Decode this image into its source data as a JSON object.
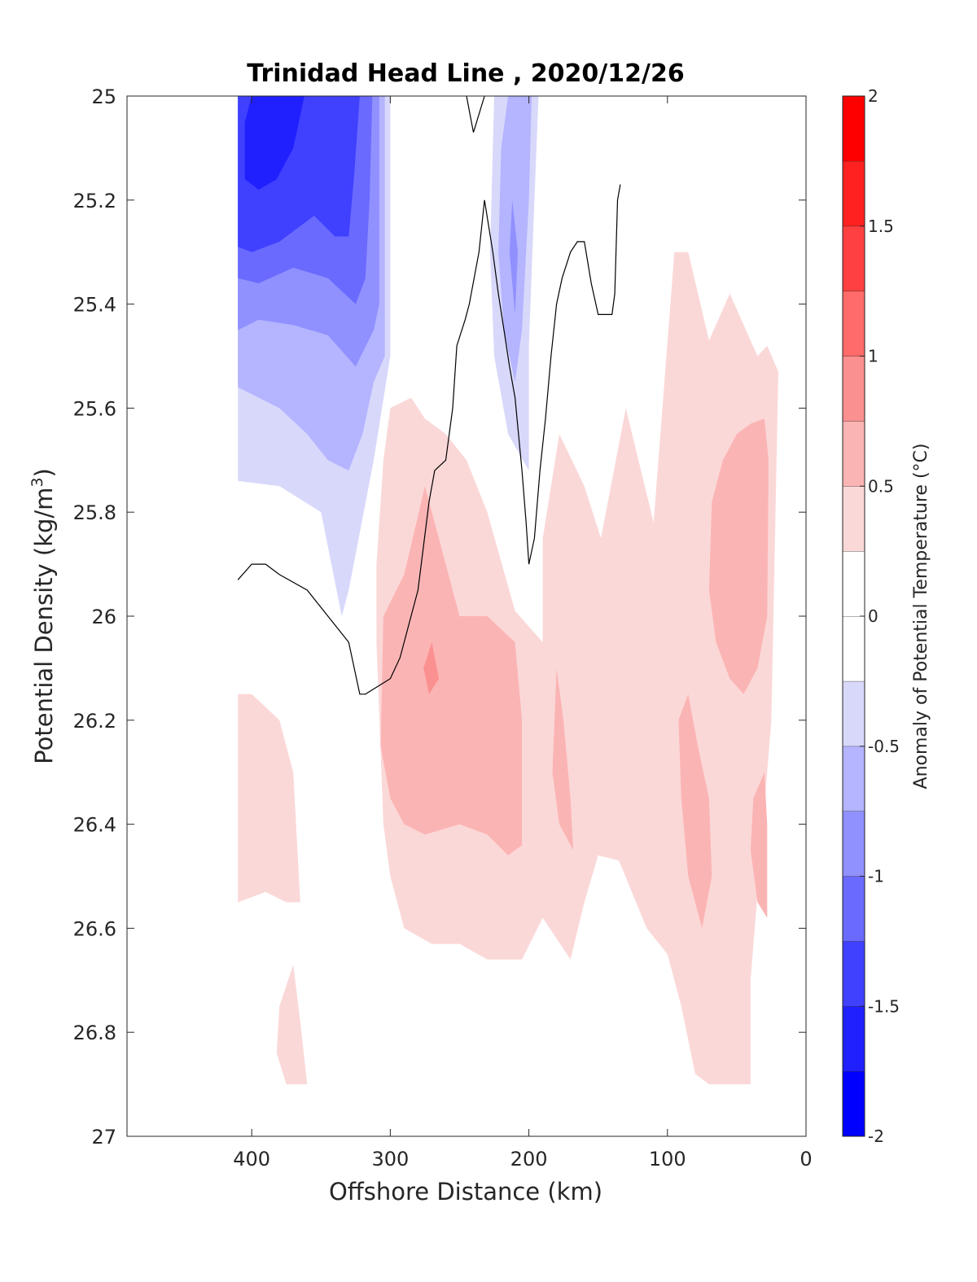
{
  "chart_data": {
    "type": "contour",
    "title": "Trinidad Head Line , 2020/12/26",
    "xlabel": "Offshore Distance (km)",
    "ylabel_main": "Potential Density (kg/m",
    "ylabel_sup": "3",
    "ylabel_close": ")",
    "colorbar_label": "Anomaly of Potential Temperature (°C)",
    "xlim": [
      490,
      0
    ],
    "ylim": [
      27,
      25
    ],
    "xticks": [
      400,
      300,
      200,
      100,
      0
    ],
    "xtick_labels": [
      "400",
      "300",
      "200",
      "100",
      "0"
    ],
    "yticks": [
      25,
      25.2,
      25.4,
      25.6,
      25.8,
      26,
      26.2,
      26.4,
      26.6,
      26.8,
      27
    ],
    "ytick_labels": [
      "25",
      "25.2",
      "25.4",
      "25.6",
      "25.8",
      "26",
      "26.2",
      "26.4",
      "26.6",
      "26.8",
      "27"
    ],
    "colorbar": {
      "clim": [
        -2,
        2
      ],
      "ticks": [
        -2,
        -1.5,
        -1,
        -0.5,
        0,
        0.5,
        1,
        1.5,
        2
      ],
      "tick_labels": [
        "-2",
        "-1.5",
        "-1",
        "-0.5",
        "0",
        "0.5",
        "1",
        "1.5",
        "2"
      ],
      "levels": [
        {
          "from": -2.0,
          "to": -1.75,
          "color": "#0000ff"
        },
        {
          "from": -1.75,
          "to": -1.5,
          "color": "#2020ff"
        },
        {
          "from": -1.5,
          "to": -1.25,
          "color": "#4040ff"
        },
        {
          "from": -1.25,
          "to": -1.0,
          "color": "#6a6aff"
        },
        {
          "from": -1.0,
          "to": -0.75,
          "color": "#9090ff"
        },
        {
          "from": -0.75,
          "to": -0.5,
          "color": "#b4b4ff"
        },
        {
          "from": -0.5,
          "to": -0.25,
          "color": "#d8d8fb"
        },
        {
          "from": -0.25,
          "to": 0.0,
          "color": "#ffffff"
        },
        {
          "from": 0.0,
          "to": 0.25,
          "color": "#ffffff"
        },
        {
          "from": 0.25,
          "to": 0.5,
          "color": "#fbd8d8"
        },
        {
          "from": 0.5,
          "to": 0.75,
          "color": "#fbb4b4"
        },
        {
          "from": 0.75,
          "to": 1.0,
          "color": "#fb9090"
        },
        {
          "from": 1.0,
          "to": 1.25,
          "color": "#ff6a6a"
        },
        {
          "from": 1.25,
          "to": 1.5,
          "color": "#ff4040"
        },
        {
          "from": 1.5,
          "to": 1.75,
          "color": "#ff2020"
        },
        {
          "from": 1.75,
          "to": 2.0,
          "color": "#ff0000"
        }
      ]
    },
    "regions": [
      {
        "level": -0.375,
        "color": "#d8d8fb",
        "points": [
          [
            410,
            25
          ],
          [
            300,
            25
          ],
          [
            300,
            25.5
          ],
          [
            312,
            25.7
          ],
          [
            330,
            25.95
          ],
          [
            335,
            26
          ],
          [
            350,
            25.8
          ],
          [
            380,
            25.75
          ],
          [
            410,
            25.74
          ]
        ]
      },
      {
        "level": -0.625,
        "color": "#b4b4ff",
        "points": [
          [
            410,
            25
          ],
          [
            304,
            25
          ],
          [
            304,
            25.5
          ],
          [
            312,
            25.55
          ],
          [
            320,
            25.65
          ],
          [
            330,
            25.72
          ],
          [
            345,
            25.7
          ],
          [
            360,
            25.65
          ],
          [
            380,
            25.6
          ],
          [
            410,
            25.56
          ]
        ]
      },
      {
        "level": -0.875,
        "color": "#9090ff",
        "points": [
          [
            410,
            25
          ],
          [
            308,
            25
          ],
          [
            308,
            25.4
          ],
          [
            312,
            25.45
          ],
          [
            325,
            25.52
          ],
          [
            345,
            25.46
          ],
          [
            370,
            25.44
          ],
          [
            395,
            25.43
          ],
          [
            410,
            25.45
          ]
        ]
      },
      {
        "level": -1.125,
        "color": "#6a6aff",
        "points": [
          [
            410,
            25
          ],
          [
            313,
            25
          ],
          [
            315,
            25.2
          ],
          [
            318,
            25.35
          ],
          [
            325,
            25.4
          ],
          [
            345,
            25.35
          ],
          [
            370,
            25.33
          ],
          [
            395,
            25.36
          ],
          [
            410,
            25.35
          ]
        ]
      },
      {
        "level": -1.375,
        "color": "#4040ff",
        "points": [
          [
            410,
            25
          ],
          [
            322,
            25
          ],
          [
            326,
            25.15
          ],
          [
            330,
            25.27
          ],
          [
            340,
            25.27
          ],
          [
            355,
            25.23
          ],
          [
            380,
            25.28
          ],
          [
            400,
            25.3
          ],
          [
            410,
            25.29
          ]
        ]
      },
      {
        "level": -1.625,
        "color": "#2020ff",
        "points": [
          [
            400,
            25
          ],
          [
            362,
            25
          ],
          [
            370,
            25.1
          ],
          [
            382,
            25.16
          ],
          [
            395,
            25.18
          ],
          [
            405,
            25.16
          ],
          [
            405,
            25.05
          ]
        ]
      },
      {
        "level": -0.375,
        "color": "#d8d8fb",
        "points": [
          [
            225,
            25
          ],
          [
            193,
            25
          ],
          [
            196,
            25.2
          ],
          [
            200,
            25.48
          ],
          [
            200,
            25.72
          ],
          [
            215,
            25.65
          ],
          [
            225,
            25.5
          ],
          [
            228,
            25.3
          ]
        ]
      },
      {
        "level": -0.625,
        "color": "#b4b4ff",
        "points": [
          [
            215,
            25
          ],
          [
            198,
            25
          ],
          [
            200,
            25.2
          ],
          [
            205,
            25.45
          ],
          [
            210,
            25.55
          ],
          [
            218,
            25.45
          ],
          [
            222,
            25.3
          ],
          [
            220,
            25.1
          ]
        ]
      },
      {
        "level": -0.875,
        "color": "#9090ff",
        "points": [
          [
            212,
            25.2
          ],
          [
            208,
            25.3
          ],
          [
            210,
            25.42
          ],
          [
            214,
            25.3
          ]
        ]
      },
      {
        "level": 0.375,
        "color": "#fbd8d8",
        "points": [
          [
            310,
            26.05
          ],
          [
            305,
            26.4
          ],
          [
            300,
            26.5
          ],
          [
            290,
            26.6
          ],
          [
            270,
            26.63
          ],
          [
            250,
            26.63
          ],
          [
            230,
            26.66
          ],
          [
            205,
            26.66
          ],
          [
            190,
            26.58
          ],
          [
            170,
            26.66
          ],
          [
            160,
            26.55
          ],
          [
            150,
            26.46
          ],
          [
            135,
            26.47
          ],
          [
            115,
            26.6
          ],
          [
            100,
            26.65
          ],
          [
            90,
            26.75
          ],
          [
            80,
            26.88
          ],
          [
            70,
            26.9
          ],
          [
            40,
            26.9
          ],
          [
            40,
            26.7
          ],
          [
            25,
            26.2
          ],
          [
            20,
            25.53
          ],
          [
            28,
            25.48
          ],
          [
            35,
            25.5
          ],
          [
            55,
            25.38
          ],
          [
            70,
            25.47
          ],
          [
            85,
            25.3
          ],
          [
            95,
            25.3
          ],
          [
            110,
            25.82
          ],
          [
            130,
            25.6
          ],
          [
            148,
            25.85
          ],
          [
            160,
            25.75
          ],
          [
            178,
            25.65
          ],
          [
            190,
            25.85
          ],
          [
            190,
            26.05
          ],
          [
            210,
            25.99
          ],
          [
            230,
            25.8
          ],
          [
            245,
            25.7
          ],
          [
            260,
            25.65
          ],
          [
            275,
            25.62
          ],
          [
            285,
            25.58
          ],
          [
            300,
            25.6
          ],
          [
            305,
            25.7
          ],
          [
            310,
            25.9
          ]
        ]
      },
      {
        "level": 0.375,
        "color": "#fbd8d8",
        "points": [
          [
            410,
            26.15
          ],
          [
            400,
            26.15
          ],
          [
            380,
            26.2
          ],
          [
            370,
            26.3
          ],
          [
            365,
            26.55
          ],
          [
            375,
            26.55
          ],
          [
            390,
            26.53
          ],
          [
            410,
            26.55
          ]
        ]
      },
      {
        "level": 0.375,
        "color": "#fbd8d8",
        "points": [
          [
            380,
            26.75
          ],
          [
            370,
            26.67
          ],
          [
            365,
            26.78
          ],
          [
            360,
            26.9
          ],
          [
            375,
            26.9
          ],
          [
            382,
            26.84
          ]
        ]
      },
      {
        "level": 0.625,
        "color": "#fbb4b4",
        "points": [
          [
            290,
            25.92
          ],
          [
            305,
            26.0
          ],
          [
            307,
            26.25
          ],
          [
            300,
            26.35
          ],
          [
            290,
            26.4
          ],
          [
            275,
            26.42
          ],
          [
            250,
            26.4
          ],
          [
            230,
            26.42
          ],
          [
            215,
            26.46
          ],
          [
            205,
            26.44
          ],
          [
            205,
            26.2
          ],
          [
            210,
            26.05
          ],
          [
            230,
            26.0
          ],
          [
            250,
            26.0
          ],
          [
            265,
            25.85
          ],
          [
            275,
            25.75
          ]
        ]
      },
      {
        "level": 0.875,
        "color": "#fb9090",
        "points": [
          [
            270,
            26.05
          ],
          [
            265,
            26.12
          ],
          [
            272,
            26.15
          ],
          [
            276,
            26.1
          ]
        ]
      },
      {
        "level": 0.625,
        "color": "#fbb4b4",
        "points": [
          [
            180,
            26.1
          ],
          [
            175,
            26.2
          ],
          [
            170,
            26.35
          ],
          [
            168,
            26.45
          ],
          [
            178,
            26.4
          ],
          [
            183,
            26.3
          ]
        ]
      },
      {
        "level": 0.625,
        "color": "#fbb4b4",
        "points": [
          [
            85,
            26.15
          ],
          [
            78,
            26.25
          ],
          [
            70,
            26.35
          ],
          [
            68,
            26.5
          ],
          [
            75,
            26.6
          ],
          [
            85,
            26.5
          ],
          [
            90,
            26.35
          ],
          [
            92,
            26.2
          ]
        ]
      },
      {
        "level": 0.625,
        "color": "#fbb4b4",
        "points": [
          [
            30,
            26.3
          ],
          [
            28,
            26.4
          ],
          [
            28,
            26.58
          ],
          [
            35,
            26.55
          ],
          [
            40,
            26.45
          ],
          [
            38,
            26.35
          ]
        ]
      },
      {
        "level": 0.625,
        "color": "#fbb4b4",
        "points": [
          [
            50,
            25.65
          ],
          [
            60,
            25.7
          ],
          [
            68,
            25.78
          ],
          [
            70,
            25.95
          ],
          [
            65,
            26.05
          ],
          [
            55,
            26.12
          ],
          [
            45,
            26.15
          ],
          [
            35,
            26.1
          ],
          [
            28,
            26.0
          ],
          [
            27,
            25.7
          ],
          [
            30,
            25.62
          ],
          [
            40,
            25.63
          ]
        ]
      }
    ],
    "zero_contours": [
      [
        [
          410,
          25.93
        ],
        [
          400,
          25.9
        ],
        [
          390,
          25.9
        ],
        [
          380,
          25.92
        ],
        [
          360,
          25.95
        ],
        [
          345,
          26.0
        ],
        [
          330,
          26.05
        ],
        [
          322,
          26.15
        ],
        [
          318,
          26.15
        ],
        [
          300,
          26.12
        ],
        [
          293,
          26.08
        ],
        [
          280,
          25.95
        ],
        [
          272,
          25.78
        ],
        [
          268,
          25.72
        ],
        [
          260,
          25.7
        ],
        [
          255,
          25.6
        ],
        [
          252,
          25.48
        ],
        [
          246,
          25.43
        ],
        [
          243,
          25.4
        ],
        [
          236,
          25.3
        ],
        [
          232,
          25.2
        ],
        [
          226,
          25.3
        ],
        [
          222,
          25.38
        ],
        [
          218,
          25.45
        ],
        [
          214,
          25.52
        ],
        [
          210,
          25.58
        ],
        [
          205,
          25.72
        ],
        [
          202,
          25.82
        ],
        [
          200,
          25.9
        ],
        [
          196,
          25.85
        ],
        [
          192,
          25.72
        ],
        [
          188,
          25.62
        ],
        [
          184,
          25.5
        ],
        [
          180,
          25.4
        ],
        [
          176,
          25.35
        ],
        [
          170,
          25.3
        ],
        [
          165,
          25.28
        ],
        [
          160,
          25.28
        ],
        [
          155,
          25.36
        ],
        [
          150,
          25.42
        ],
        [
          146,
          25.42
        ],
        [
          140,
          25.42
        ],
        [
          138,
          25.38
        ],
        [
          136,
          25.2
        ],
        [
          134,
          25.17
        ]
      ]
    ],
    "zero_contour_top": [
      [
        232,
        25
      ],
      [
        240,
        25.07
      ],
      [
        245,
        25.0
      ]
    ]
  }
}
